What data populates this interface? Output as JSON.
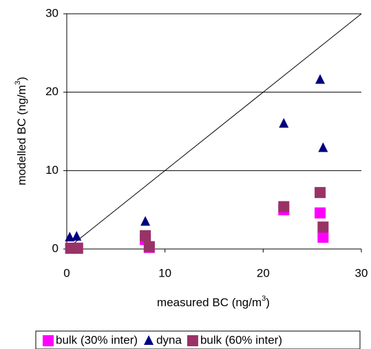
{
  "chart_data": {
    "type": "scatter",
    "x_label": [
      "measured BC (ng/m",
      "3",
      ")"
    ],
    "y_label": [
      "modelled BC (ng/m",
      "3",
      ")"
    ],
    "xlim": [
      0,
      30
    ],
    "ylim": [
      0,
      30
    ],
    "xticks": [
      0,
      10,
      20,
      30
    ],
    "yticks": [
      0,
      10,
      20,
      30
    ],
    "grid": true,
    "legend": "bottom",
    "series": [
      {
        "name": "bulk (30% inter)",
        "color": "#ff00ff",
        "marker": "square",
        "x": [
          0.4,
          1.1,
          8.0,
          8.4,
          22.1,
          25.8,
          26.1
        ],
        "values": [
          0.1,
          0.1,
          1.2,
          0.2,
          5.0,
          4.6,
          1.5
        ]
      },
      {
        "name": "dyna",
        "color": "#000080",
        "marker": "triangle",
        "x": [
          0.3,
          1.0,
          8.0,
          22.1,
          25.8,
          26.1
        ],
        "values": [
          1.5,
          1.6,
          3.5,
          16.0,
          21.6,
          12.9
        ]
      },
      {
        "name": "bulk (60% inter)",
        "color": "#993366",
        "marker": "square",
        "x": [
          0.4,
          1.1,
          8.0,
          8.4,
          22.1,
          25.8,
          26.1
        ],
        "values": [
          0.1,
          0.1,
          1.7,
          0.3,
          5.4,
          7.2,
          2.8
        ]
      }
    ]
  }
}
